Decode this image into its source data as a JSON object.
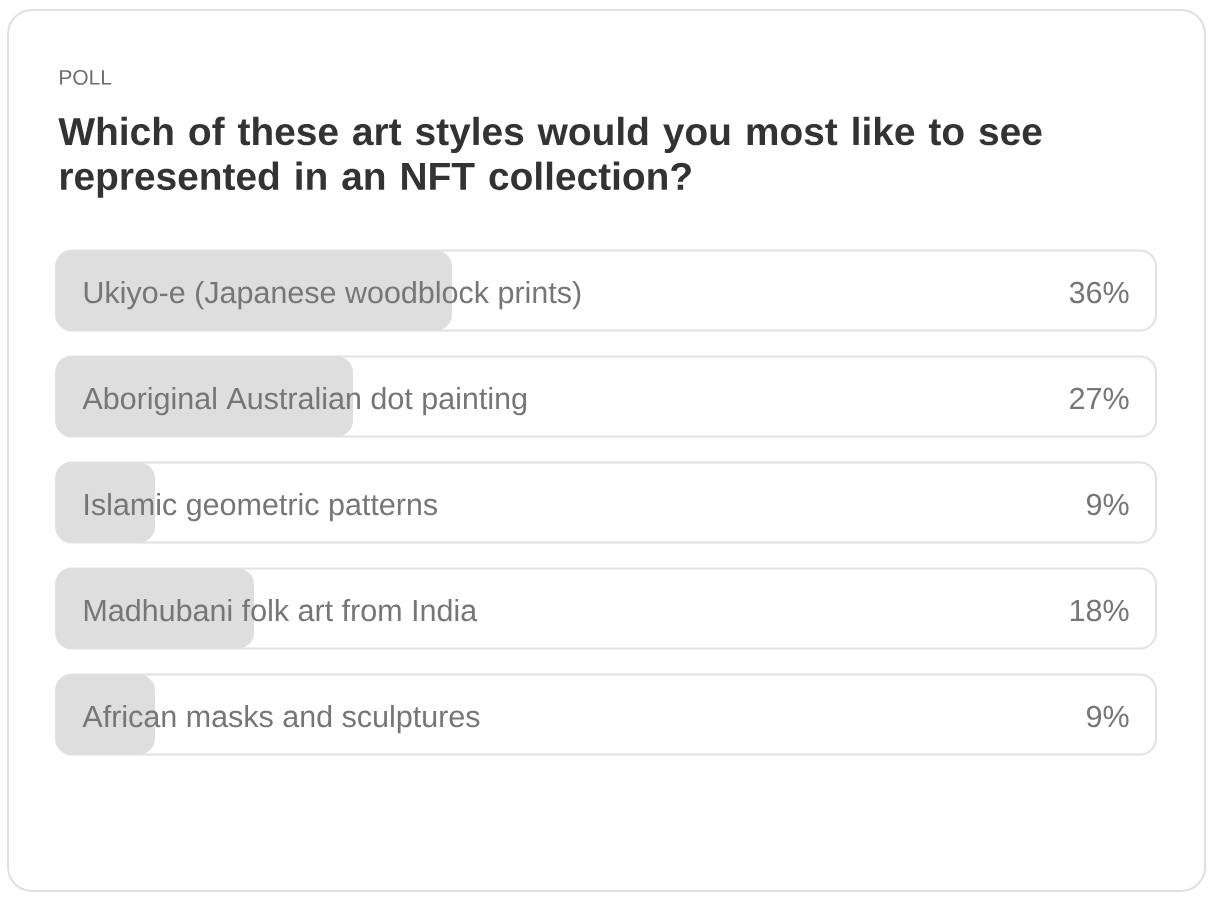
{
  "chart_data": {
    "type": "bar",
    "orientation": "horizontal",
    "subtitle": "POLL",
    "title": "Which of these art styles would you most like to see represented in an NFT collection?",
    "categories": [
      "Ukiyo-e (Japanese woodblock prints)",
      "Aboriginal Australian dot painting",
      "Islamic geometric patterns",
      "Madhubani folk art from India",
      "African masks and sculptures"
    ],
    "values": [
      36,
      27,
      9,
      18,
      9
    ],
    "color": "#dedede",
    "value_labels": [
      "36%",
      "27%",
      "9%",
      "18%",
      "9%"
    ],
    "xlim": [
      0,
      100
    ],
    "tick_labels": "y"
  }
}
